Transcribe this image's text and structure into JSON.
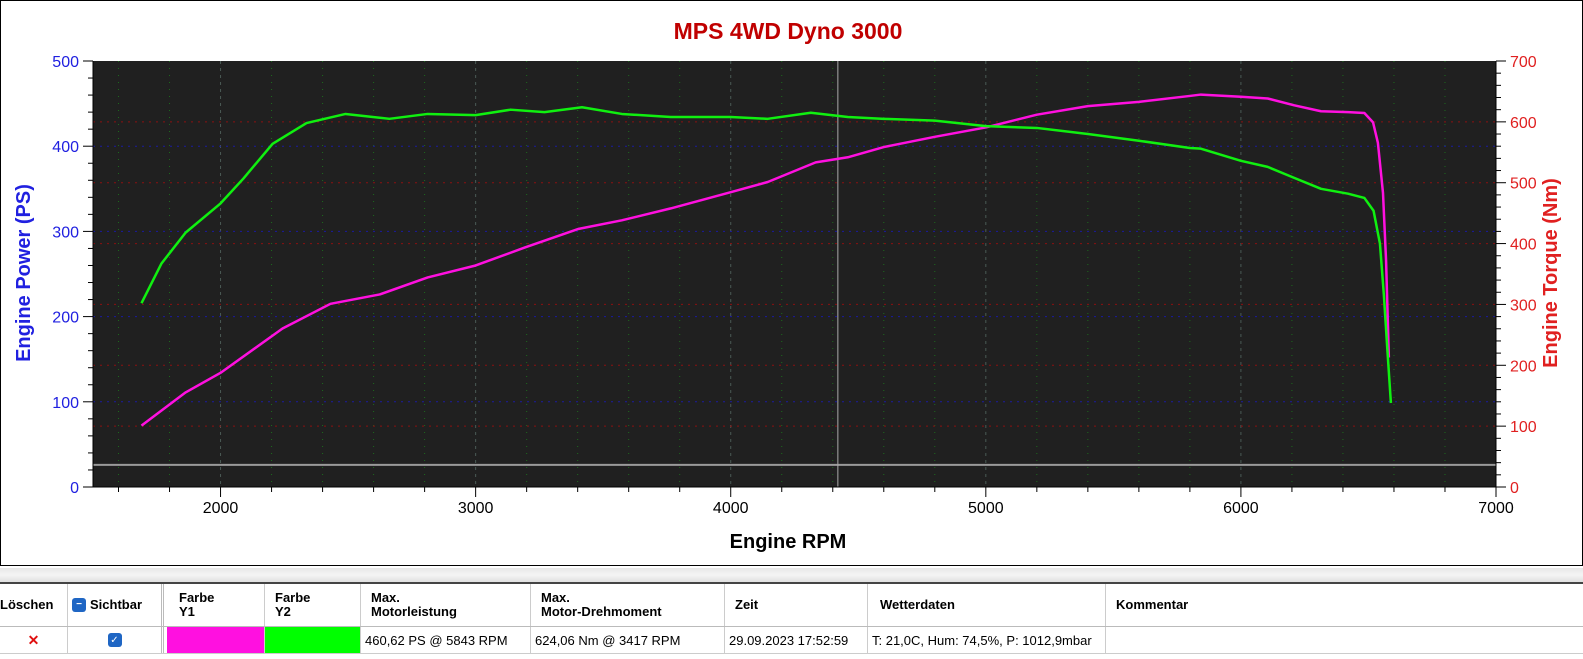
{
  "chart_data": {
    "type": "line",
    "title": "MPS 4WD Dyno 3000",
    "xlabel": "Engine RPM",
    "ylabel": "Engine Power (PS)",
    "y2label": "Engine Torque (Nm)",
    "xlim": [
      1500,
      7000
    ],
    "ylim": [
      0,
      500
    ],
    "y2lim": [
      0,
      700
    ],
    "xticks": [
      2000,
      3000,
      4000,
      5000,
      6000,
      7000
    ],
    "yticks": [
      0,
      100,
      200,
      300,
      400,
      500
    ],
    "y2ticks": [
      0,
      100,
      200,
      300,
      400,
      500,
      600,
      700
    ],
    "grid": true,
    "cursor_rpm": 4420,
    "baseline_ps": 26,
    "colors": {
      "title": "#c00000",
      "yaxis": "#2020e0",
      "y2axis": "#e02020",
      "plot_bg": "#202020",
      "power": "#ff10e0",
      "torque": "#10f010"
    },
    "series": [
      {
        "axis": "y",
        "color": "#ff10e0",
        "x": [
          1690,
          1863,
          2000,
          2243,
          2431,
          2624,
          2812,
          3000,
          3192,
          3404,
          3573,
          3765,
          4000,
          4145,
          4333,
          4459,
          4600,
          4800,
          5000,
          5200,
          5400,
          5600,
          5800,
          5843,
          6000,
          6105,
          6209,
          6314,
          6420,
          6484,
          6518,
          6537,
          6557,
          6569,
          6580
        ],
        "y": [
          72,
          111,
          134,
          186,
          215,
          226,
          246,
          260,
          281,
          303,
          313,
          327,
          346,
          358,
          381,
          387,
          399,
          411,
          422,
          437,
          447,
          452,
          459,
          460.6,
          458,
          456,
          448,
          441,
          440,
          439,
          428,
          404,
          345,
          266,
          152
        ]
      },
      {
        "axis": "y2",
        "color": "#10f010",
        "x": [
          1690,
          1768,
          1863,
          2000,
          2090,
          2204,
          2337,
          2490,
          2662,
          2812,
          3000,
          3137,
          3270,
          3417,
          3573,
          3765,
          4000,
          4145,
          4314,
          4459,
          4600,
          4800,
          5000,
          5200,
          5400,
          5600,
          5800,
          5843,
          6000,
          6105,
          6209,
          6314,
          6420,
          6484,
          6520,
          6545,
          6560,
          6575,
          6588
        ],
        "y": [
          302,
          367,
          418,
          466,
          507,
          564,
          598,
          613,
          605,
          613,
          611,
          620,
          616,
          624.06,
          613,
          608,
          608,
          605,
          615,
          608,
          605,
          602,
          593,
          590,
          580,
          569,
          557,
          556,
          536,
          526,
          508,
          490,
          482,
          475,
          454,
          400,
          318,
          220,
          138
        ]
      }
    ]
  },
  "table": {
    "headers": [
      "Löschen",
      "Sichtbar",
      "Farbe\nY1",
      "Farbe\nY2",
      "Max.\nMotorleistung",
      "Max.\nMotor-Drehmoment",
      "Zeit",
      "Wetterdaten",
      "Kommentar"
    ],
    "rows": [
      {
        "delete_icon": "x-icon",
        "visible": true,
        "color_y1": "#ff10e0",
        "color_y2": "#00ff00",
        "max_power": "460,62 PS @ 5843 RPM",
        "max_torque": "624,06 Nm @ 3417 RPM",
        "time": "29.09.2023 17:52:59",
        "weather": "T: 21,0C, Hum: 74,5%, P: 1012,9mbar",
        "comment": ""
      }
    ]
  }
}
